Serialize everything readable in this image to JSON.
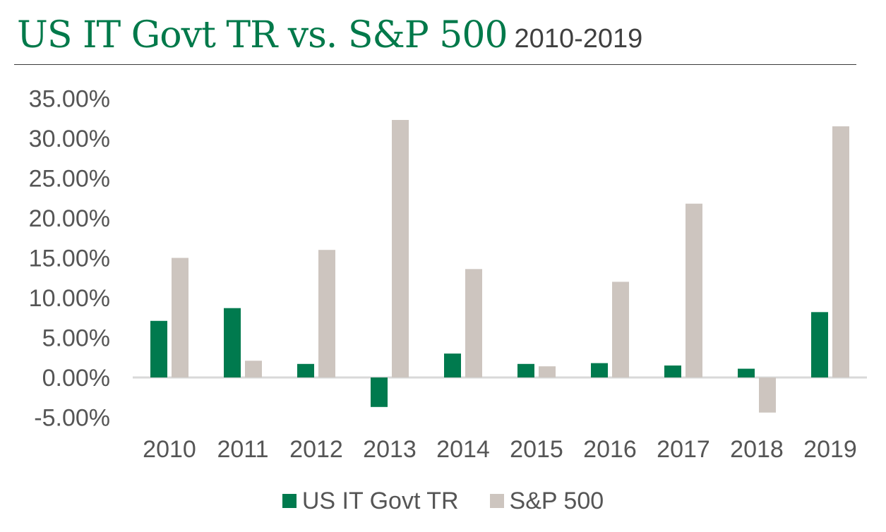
{
  "header": {
    "title": "US IT Govt TR vs. S&P 500",
    "subtitle": "2010-2019"
  },
  "colors": {
    "accent": "#00794a",
    "series_1": "#007a4e",
    "series_2": "#cdc5bf",
    "axis": "#d9d9d9",
    "text": "#555555"
  },
  "chart_data": {
    "type": "bar",
    "title": "US IT Govt TR vs. S&P 500 2010-2019",
    "xlabel": "",
    "ylabel": "",
    "categories": [
      "2010",
      "2011",
      "2012",
      "2013",
      "2014",
      "2015",
      "2016",
      "2017",
      "2018",
      "2019"
    ],
    "series": [
      {
        "name": "US IT Govt TR",
        "values": [
          7.1,
          8.7,
          1.7,
          -3.7,
          3.0,
          1.7,
          1.8,
          1.5,
          1.1,
          8.2
        ]
      },
      {
        "name": "S&P 500",
        "values": [
          15.0,
          2.1,
          16.0,
          32.3,
          13.6,
          1.4,
          12.0,
          21.8,
          -4.4,
          31.5
        ]
      }
    ],
    "ylim": [
      -5,
      35
    ],
    "yticks": [
      "35.00%",
      "30.00%",
      "25.00%",
      "20.00%",
      "15.00%",
      "10.00%",
      "5.00%",
      "0.00%",
      "-5.00%"
    ],
    "ytick_values": [
      35,
      30,
      25,
      20,
      15,
      10,
      5,
      0,
      -5
    ],
    "grid": false,
    "legend_position": "bottom"
  }
}
